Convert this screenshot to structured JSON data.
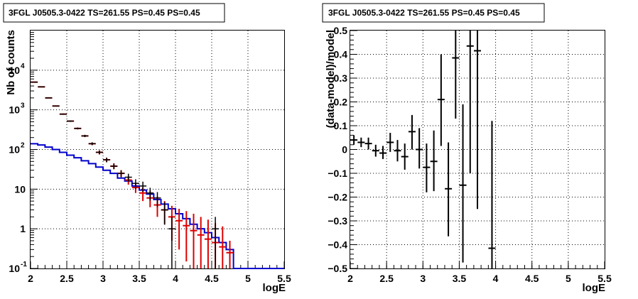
{
  "chart_data": [
    {
      "type": "line",
      "title": "3FGL J0505.3-0422 TS=261.55 PS=0.45 PS=0.45",
      "xlabel": "logE",
      "ylabel": "Nb of counts",
      "xlim": [
        2,
        5.5
      ],
      "ylim": [
        0.1,
        100000
      ],
      "yscale": "log",
      "grid": true,
      "x_ticks": [
        "2",
        "2.5",
        "3",
        "3.5",
        "4",
        "4.5",
        "5",
        "5.5"
      ],
      "y_ticks": [
        {
          "value": 0.1,
          "label": "10",
          "exp": "-1"
        },
        {
          "value": 1,
          "label": "1",
          "exp": ""
        },
        {
          "value": 10,
          "label": "10",
          "exp": ""
        },
        {
          "value": 100,
          "label": "10",
          "exp": "2"
        },
        {
          "value": 1000,
          "label": "10",
          "exp": "3"
        },
        {
          "value": 10000,
          "label": "10",
          "exp": "4"
        }
      ],
      "bin_edges": [
        2.0,
        2.1,
        2.2,
        2.3,
        2.4,
        2.5,
        2.6,
        2.7,
        2.8,
        2.9,
        3.0,
        3.1,
        3.2,
        3.3,
        3.4,
        3.5,
        3.6,
        3.7,
        3.8,
        3.9,
        4.0,
        4.1,
        4.2,
        4.3,
        4.4,
        4.5,
        4.6,
        4.7,
        4.8,
        4.9,
        5.0,
        5.1,
        5.2,
        5.3,
        5.4,
        5.5
      ],
      "series": [
        {
          "kind": "data",
          "color": "#000000",
          "points": [
            {
              "x": 2.05,
              "y": 5000
            },
            {
              "x": 2.15,
              "y": 3800
            },
            {
              "x": 2.25,
              "y": 2000
            },
            {
              "x": 2.35,
              "y": 1250
            },
            {
              "x": 2.45,
              "y": 780
            },
            {
              "x": 2.55,
              "y": 520
            },
            {
              "x": 2.65,
              "y": 340
            },
            {
              "x": 2.75,
              "y": 220
            },
            {
              "x": 2.85,
              "y": 140
            },
            {
              "x": 2.95,
              "y": 85
            },
            {
              "x": 3.05,
              "y": 55
            },
            {
              "x": 3.15,
              "y": 38
            },
            {
              "x": 3.25,
              "y": 25
            },
            {
              "x": 3.35,
              "y": 20
            },
            {
              "x": 3.45,
              "y": 14
            },
            {
              "x": 3.55,
              "y": 12
            },
            {
              "x": 3.65,
              "y": 8
            },
            {
              "x": 3.75,
              "y": 6
            },
            {
              "x": 3.85,
              "y": 3
            },
            {
              "x": 3.95,
              "y": 1
            },
            {
              "x": 4.55,
              "y": 1
            }
          ]
        },
        {
          "kind": "model",
          "color": "#dd0000",
          "points": [
            {
              "x": 2.05,
              "y": 5000,
              "dy": [
                4900,
                5100
              ]
            },
            {
              "x": 2.15,
              "y": 3800,
              "dy": [
                3750,
                3850
              ]
            },
            {
              "x": 2.25,
              "y": 2000,
              "dy": [
                1950,
                2050
              ]
            },
            {
              "x": 2.35,
              "y": 1250,
              "dy": [
                1220,
                1280
              ]
            },
            {
              "x": 2.45,
              "y": 780,
              "dy": [
                760,
                800
              ]
            },
            {
              "x": 2.55,
              "y": 520,
              "dy": [
                505,
                535
              ]
            },
            {
              "x": 2.65,
              "y": 340,
              "dy": [
                325,
                355
              ]
            },
            {
              "x": 2.75,
              "y": 220,
              "dy": [
                208,
                232
              ]
            },
            {
              "x": 2.85,
              "y": 140,
              "dy": [
                130,
                150
              ]
            },
            {
              "x": 2.95,
              "y": 85,
              "dy": [
                75,
                95
              ]
            },
            {
              "x": 3.05,
              "y": 55,
              "dy": [
                48,
                62
              ]
            },
            {
              "x": 3.15,
              "y": 38,
              "dy": [
                32,
                45
              ]
            },
            {
              "x": 3.25,
              "y": 25,
              "dy": [
                20,
                30
              ]
            },
            {
              "x": 3.35,
              "y": 17,
              "dy": [
                13,
                21
              ]
            },
            {
              "x": 3.45,
              "y": 11,
              "dy": [
                8,
                14
              ]
            },
            {
              "x": 3.55,
              "y": 8,
              "dy": [
                5,
                11
              ]
            },
            {
              "x": 3.65,
              "y": 6,
              "dy": [
                3.5,
                9
              ]
            },
            {
              "x": 3.75,
              "y": 4,
              "dy": [
                2,
                6.5
              ]
            },
            {
              "x": 3.85,
              "y": 3,
              "dy": [
                1.3,
                5
              ]
            },
            {
              "x": 3.95,
              "y": 2,
              "dy": [
                0.5,
                3.8
              ]
            },
            {
              "x": 4.05,
              "y": 1.6,
              "dy": [
                0.3,
                3.2
              ]
            },
            {
              "x": 4.15,
              "y": 1.2,
              "dy": [
                0.15,
                2.8
              ]
            },
            {
              "x": 4.25,
              "y": 0.9,
              "dy": [
                0.1,
                2.4
              ]
            },
            {
              "x": 4.35,
              "y": 0.7,
              "dy": [
                0.1,
                2.0
              ]
            },
            {
              "x": 4.45,
              "y": 0.55,
              "dy": [
                0.1,
                1.7
              ]
            },
            {
              "x": 4.55,
              "y": 0.45,
              "dy": [
                0.1,
                1.4
              ]
            },
            {
              "x": 4.65,
              "y": 0.35,
              "dy": [
                0.1,
                1.15
              ]
            },
            {
              "x": 4.75,
              "y": 0.25,
              "dy": [
                0.1,
                0.5
              ]
            }
          ]
        },
        {
          "kind": "background",
          "color": "#0000cc",
          "bin_values": [
            140,
            130,
            115,
            100,
            85,
            72,
            62,
            52,
            44,
            36,
            30,
            25,
            19,
            16,
            12,
            9.5,
            7.5,
            5.5,
            4.2,
            3.2,
            2.4,
            1.8,
            1.3,
            1.0,
            0.8,
            0.6,
            0.45,
            0.3,
            0.1,
            0.1,
            0.1,
            0.1,
            0.1,
            0.1,
            0.1
          ]
        }
      ]
    },
    {
      "type": "scatter",
      "title": "3FGL J0505.3-0422 TS=261.55 PS=0.45 PS=0.45",
      "xlabel": "logE",
      "ylabel": "(data-model)/model",
      "xlim": [
        2,
        5.5
      ],
      "ylim": [
        -0.5,
        0.5
      ],
      "grid": true,
      "x_ticks": [
        "2",
        "2.5",
        "3",
        "3.5",
        "4",
        "4.5",
        "5",
        "5.5"
      ],
      "y_ticks": [
        "-0.5",
        "-0.4",
        "-0.3",
        "-0.2",
        "-0.1",
        "0",
        "0.1",
        "0.2",
        "0.3",
        "0.4",
        "0.5"
      ],
      "points": [
        {
          "x": 2.05,
          "y": 0.04,
          "ylo": 0.02,
          "yhi": 0.06
        },
        {
          "x": 2.15,
          "y": 0.03,
          "ylo": 0.01,
          "yhi": 0.05
        },
        {
          "x": 2.25,
          "y": 0.025,
          "ylo": 0.0,
          "yhi": 0.05
        },
        {
          "x": 2.35,
          "y": -0.005,
          "ylo": -0.03,
          "yhi": 0.02
        },
        {
          "x": 2.45,
          "y": -0.015,
          "ylo": -0.04,
          "yhi": 0.015
        },
        {
          "x": 2.55,
          "y": 0.03,
          "ylo": -0.01,
          "yhi": 0.07
        },
        {
          "x": 2.65,
          "y": -0.005,
          "ylo": -0.05,
          "yhi": 0.04
        },
        {
          "x": 2.75,
          "y": -0.03,
          "ylo": -0.085,
          "yhi": 0.025
        },
        {
          "x": 2.85,
          "y": 0.075,
          "ylo": 0.0,
          "yhi": 0.145
        },
        {
          "x": 2.95,
          "y": 0.0,
          "ylo": -0.08,
          "yhi": 0.09
        },
        {
          "x": 3.05,
          "y": -0.075,
          "ylo": -0.18,
          "yhi": 0.025
        },
        {
          "x": 3.15,
          "y": -0.05,
          "ylo": -0.175,
          "yhi": 0.08
        },
        {
          "x": 3.25,
          "y": 0.21,
          "ylo": 0.015,
          "yhi": 0.4
        },
        {
          "x": 3.35,
          "y": -0.165,
          "ylo": -0.365,
          "yhi": 0.03
        },
        {
          "x": 3.45,
          "y": 0.385,
          "ylo": 0.13,
          "yhi": 0.5
        },
        {
          "x": 3.55,
          "y": -0.15,
          "ylo": -0.475,
          "yhi": 0.19
        },
        {
          "x": 3.65,
          "y": 0.435,
          "ylo": -0.1,
          "yhi": 0.5
        },
        {
          "x": 3.75,
          "y": 0.415,
          "ylo": -0.25,
          "yhi": 0.5
        },
        {
          "x": 3.95,
          "y": -0.415,
          "ylo": -0.5,
          "yhi": 0.12
        }
      ]
    }
  ]
}
